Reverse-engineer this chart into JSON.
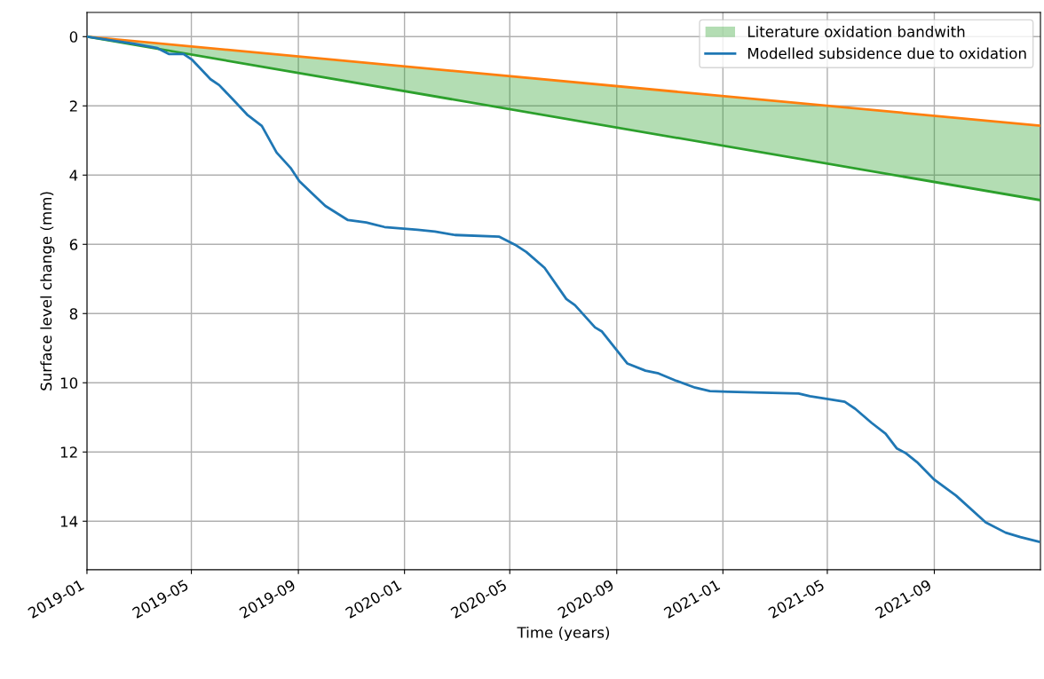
{
  "chart_data": {
    "type": "line",
    "xlabel": "Time (years)",
    "ylabel": "Surface level change (mm)",
    "xlim": [
      "2019-01-01",
      "2022-01-01"
    ],
    "ylim": [
      15.4,
      -0.7
    ],
    "xticks": [
      {
        "value": "2019-01-01",
        "label": "2019-01"
      },
      {
        "value": "2019-05-01",
        "label": "2019-05"
      },
      {
        "value": "2019-09-01",
        "label": "2019-09"
      },
      {
        "value": "2020-01-01",
        "label": "2020-01"
      },
      {
        "value": "2020-05-01",
        "label": "2020-05"
      },
      {
        "value": "2020-09-01",
        "label": "2020-09"
      },
      {
        "value": "2021-01-01",
        "label": "2021-01"
      },
      {
        "value": "2021-05-01",
        "label": "2021-05"
      },
      {
        "value": "2021-09-01",
        "label": "2021-09"
      }
    ],
    "yticks": [
      0,
      2,
      4,
      6,
      8,
      10,
      12,
      14
    ],
    "grid": true,
    "legend": "top right",
    "series": [
      {
        "color": "#ff7f0e",
        "x": [
          "2019-01-01",
          "2021-12-31"
        ],
        "values": [
          0,
          2.57
        ]
      },
      {
        "name": "Literature oxidation bandwith",
        "color": "#2ca02c",
        "x": [
          "2019-01-01",
          "2021-12-31"
        ],
        "values": [
          0,
          4.72
        ],
        "lower": [
          0,
          2.57
        ],
        "upper": [
          0,
          4.72
        ]
      },
      {
        "name": "Modelled subsidence due to oxidation",
        "color": "#1f77b4",
        "x": [
          "2019-01-01",
          "2019-02-23",
          "2019-03-23",
          "2019-04-05",
          "2019-04-22",
          "2019-05-02",
          "2019-05-23",
          "2019-06-02",
          "2019-06-18",
          "2019-07-04",
          "2019-07-21",
          "2019-08-07",
          "2019-08-23",
          "2019-09-02",
          "2019-09-18",
          "2019-10-02",
          "2019-10-28",
          "2019-11-18",
          "2019-12-09",
          "2020-01-16",
          "2020-02-05",
          "2020-02-28",
          "2020-04-19",
          "2020-05-07",
          "2020-05-20",
          "2020-06-10",
          "2020-07-05",
          "2020-07-15",
          "2020-08-07",
          "2020-08-15",
          "2020-09-13",
          "2020-10-04",
          "2020-10-19",
          "2020-11-07",
          "2020-11-30",
          "2020-12-17",
          "2021-01-07",
          "2021-03-29",
          "2021-04-11",
          "2021-05-02",
          "2021-05-21",
          "2021-06-02",
          "2021-06-21",
          "2021-07-07",
          "2021-07-20",
          "2021-07-30",
          "2021-08-12",
          "2021-09-01",
          "2021-09-26",
          "2021-10-30",
          "2021-11-22",
          "2021-12-09",
          "2021-12-30"
        ],
        "values": [
          0,
          0.2,
          0.33,
          0.5,
          0.5,
          0.67,
          1.23,
          1.4,
          1.82,
          2.25,
          2.58,
          3.35,
          3.79,
          4.17,
          4.56,
          4.89,
          5.3,
          5.37,
          5.5,
          5.58,
          5.63,
          5.73,
          5.78,
          6.01,
          6.22,
          6.68,
          7.58,
          7.76,
          8.4,
          8.52,
          9.44,
          9.65,
          9.73,
          9.93,
          10.14,
          10.24,
          10.26,
          10.31,
          10.39,
          10.47,
          10.55,
          10.75,
          11.16,
          11.47,
          11.9,
          12.03,
          12.29,
          12.8,
          13.26,
          14.03,
          14.33,
          14.46,
          14.59
        ]
      }
    ]
  }
}
